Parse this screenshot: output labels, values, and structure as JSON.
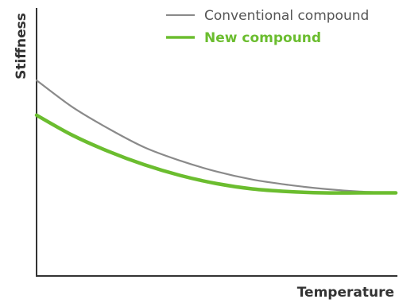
{
  "chart_data": {
    "type": "line",
    "title": "",
    "xlabel": "Temperature",
    "ylabel": "Stiffness",
    "x_ticks_shown": false,
    "y_ticks_shown": false,
    "xlim": [
      0,
      100
    ],
    "ylim": [
      0,
      100
    ],
    "grid": false,
    "legend_position": "top-right",
    "x": [
      0,
      10,
      20,
      30,
      40,
      50,
      60,
      70,
      80,
      90,
      100
    ],
    "series": [
      {
        "name": "Conventional compound",
        "color": "#8a8a8a",
        "emphasis": "normal",
        "values": [
          73,
          63,
          55,
          48,
          43,
          39,
          36,
          34,
          32.5,
          31.5,
          31
        ]
      },
      {
        "name": "New compound",
        "color": "#6bbd2f",
        "emphasis": "bold",
        "values": [
          60,
          52.5,
          46.5,
          41.5,
          37.5,
          34.5,
          32.5,
          31.5,
          31,
          31,
          31
        ]
      }
    ]
  }
}
